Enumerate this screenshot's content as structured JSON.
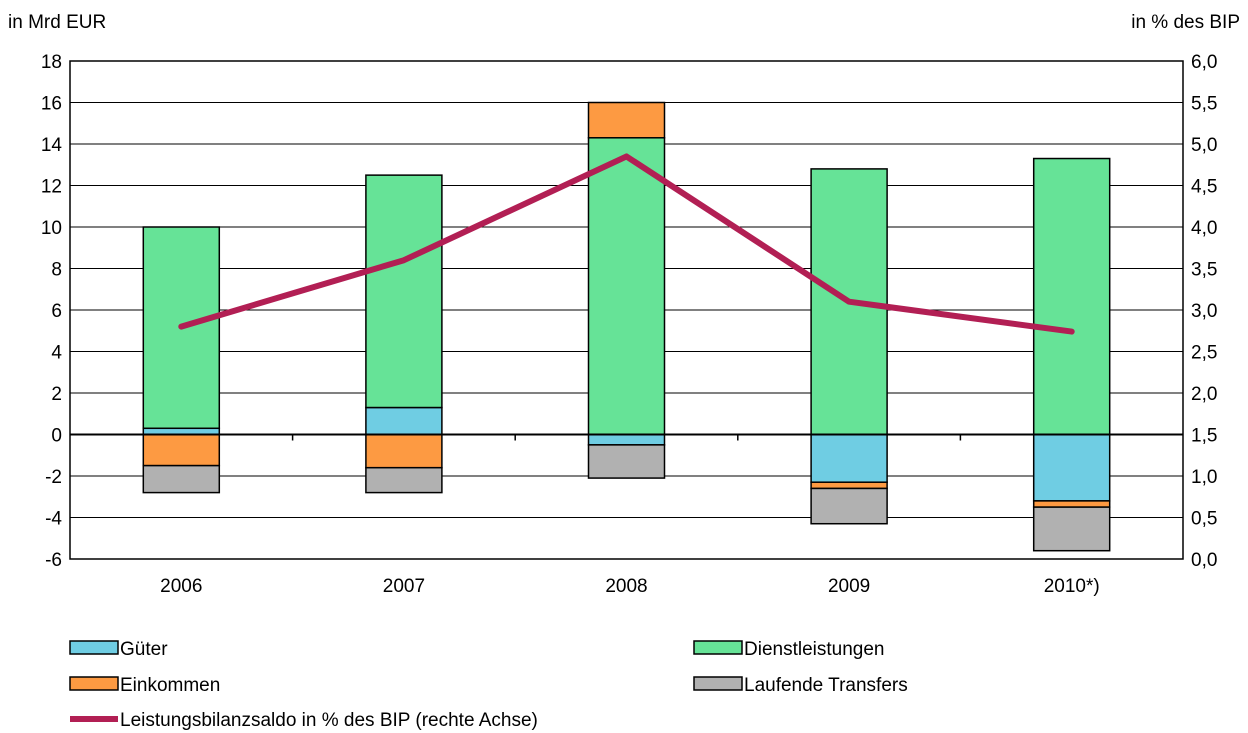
{
  "chart_data": {
    "type": "bar",
    "stacked": true,
    "categories": [
      "2006",
      "2007",
      "2008",
      "2009",
      "2010*)"
    ],
    "y_left": {
      "label": "in Mrd EUR",
      "min": -6,
      "max": 18,
      "step": 2,
      "ticks": [
        "-6",
        "-4",
        "-2",
        "0",
        "2",
        "4",
        "6",
        "8",
        "10",
        "12",
        "14",
        "16",
        "18"
      ]
    },
    "y_right": {
      "label": "in % des BIP",
      "min": 0.0,
      "max": 6.0,
      "step": 0.5,
      "ticks": [
        "0,0",
        "0,5",
        "1,0",
        "1,5",
        "2,0",
        "2,5",
        "3,0",
        "3,5",
        "4,0",
        "4,5",
        "5,0",
        "5,5",
        "6,0"
      ]
    },
    "series": [
      {
        "name": "Güter",
        "color": "#6fcde3",
        "axis": "left",
        "values": [
          0.3,
          1.3,
          -0.5,
          -2.3,
          -3.2
        ]
      },
      {
        "name": "Dienstleistungen",
        "color": "#66e397",
        "axis": "left",
        "values": [
          9.7,
          11.2,
          14.3,
          12.8,
          13.3
        ]
      },
      {
        "name": "Einkommen",
        "color": "#fd9a42",
        "axis": "left",
        "values": [
          -1.5,
          -1.6,
          1.7,
          -0.3,
          -0.3
        ]
      },
      {
        "name": "Laufende Transfers",
        "color": "#b1b1b1",
        "axis": "left",
        "values": [
          -1.3,
          -1.2,
          -1.6,
          -1.7,
          -2.1
        ]
      }
    ],
    "line": {
      "name": "Leistungsbilanzsaldo in % des BIP (rechte Achse)",
      "color": "#b21f54",
      "axis": "right",
      "values": [
        2.8,
        3.6,
        4.85,
        3.1,
        2.74
      ]
    },
    "grid": true,
    "legend": [
      [
        "Güter",
        "Dienstleistungen"
      ],
      [
        "Einkommen",
        "Laufende Transfers"
      ],
      [
        "Leistungsbilanzsaldo in % des BIP (rechte Achse)"
      ]
    ]
  }
}
